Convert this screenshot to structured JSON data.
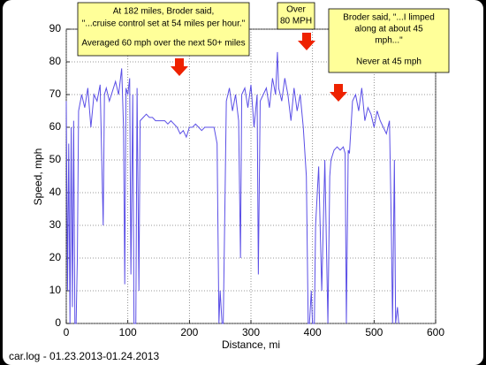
{
  "chart_data": {
    "type": "line",
    "xlabel": "Distance, mi",
    "ylabel": "Speed, mph",
    "footer": "car.log - 01.23.2013-01.24.2013",
    "annotations": [
      {
        "lines": [
          "At 182 miles, Broder said,",
          "\"...cruise control set at 54 miles per hour.\"",
          "Averaged 60 mph over the next 50+ miles"
        ]
      },
      {
        "lines": [
          "Over",
          "80 MPH"
        ]
      },
      {
        "lines": [
          "Broder said, \"...I limped",
          "along at about 45",
          "mph...\"",
          "Never at 45 mph"
        ]
      }
    ],
    "xlim": [
      0,
      600
    ],
    "xticks": [
      0,
      100,
      200,
      300,
      400,
      500,
      600
    ],
    "ylim": [
      0,
      90
    ],
    "yticks": [
      0,
      10,
      20,
      30,
      40,
      50,
      60,
      70,
      80,
      90
    ],
    "grid": true,
    "series": [
      {
        "color": "#5b4fe6",
        "x": [
          0,
          2,
          4,
          6,
          8,
          10,
          12,
          14,
          16,
          18,
          20,
          25,
          30,
          35,
          40,
          45,
          50,
          55,
          60,
          62,
          65,
          70,
          75,
          80,
          85,
          90,
          93,
          95,
          97,
          100,
          103,
          105,
          108,
          110,
          113,
          115,
          118,
          120,
          125,
          130,
          135,
          140,
          145,
          150,
          155,
          160,
          165,
          170,
          175,
          180,
          185,
          190,
          195,
          200,
          205,
          210,
          215,
          220,
          225,
          230,
          235,
          240,
          245,
          248,
          250,
          253,
          255,
          258,
          260,
          265,
          270,
          275,
          280,
          283,
          285,
          290,
          295,
          300,
          305,
          310,
          312,
          315,
          320,
          325,
          330,
          335,
          340,
          343,
          345,
          350,
          355,
          360,
          365,
          370,
          375,
          380,
          385,
          390,
          393,
          395,
          398,
          400,
          403,
          405,
          410,
          415,
          420,
          425,
          428,
          430,
          435,
          440,
          445,
          450,
          453,
          455,
          458,
          460,
          465,
          470,
          475,
          480,
          485,
          490,
          495,
          500,
          505,
          510,
          515,
          520,
          525,
          528,
          530,
          533,
          535,
          538,
          540
        ],
        "values": [
          68,
          10,
          55,
          0,
          60,
          5,
          62,
          0,
          0,
          20,
          65,
          70,
          66,
          72,
          60,
          70,
          68,
          73,
          30,
          70,
          72,
          68,
          71,
          74,
          70,
          78,
          60,
          12,
          72,
          70,
          75,
          15,
          70,
          0,
          0,
          72,
          10,
          62,
          63,
          64,
          63,
          63,
          62,
          62,
          62,
          62,
          61,
          62,
          61,
          60,
          58,
          59,
          57,
          60,
          60,
          61,
          60,
          59,
          60,
          60,
          60,
          60,
          55,
          0,
          10,
          0,
          0,
          40,
          68,
          72,
          65,
          70,
          62,
          20,
          70,
          72,
          66,
          73,
          60,
          70,
          15,
          68,
          70,
          72,
          66,
          75,
          70,
          83,
          72,
          68,
          75,
          70,
          62,
          72,
          65,
          70,
          60,
          45,
          0,
          0,
          10,
          0,
          0,
          30,
          48,
          10,
          50,
          0,
          45,
          50,
          53,
          54,
          53,
          54,
          52,
          0,
          53,
          52,
          68,
          70,
          65,
          72,
          62,
          66,
          64,
          60,
          65,
          62,
          60,
          58,
          62,
          30,
          0,
          50,
          0,
          5,
          0
        ]
      }
    ]
  }
}
